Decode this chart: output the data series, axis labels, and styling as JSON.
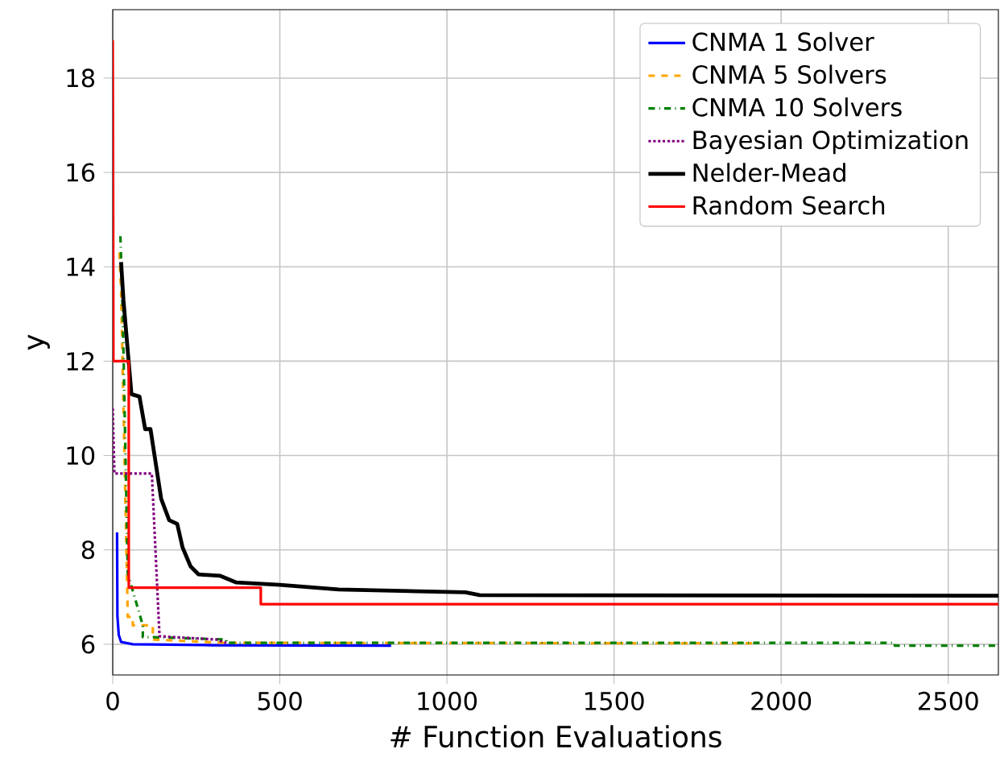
{
  "chart_data": {
    "type": "line",
    "xlabel": "# Function Evaluations",
    "ylabel": "y",
    "xlim": [
      0,
      2650
    ],
    "ylim": [
      5.35,
      19.45
    ],
    "xticks": [
      0,
      500,
      1000,
      1500,
      2000,
      2500
    ],
    "yticks": [
      6,
      8,
      10,
      12,
      14,
      16,
      18
    ],
    "grid": true,
    "legend": "top right",
    "series": [
      {
        "name": "CNMA 1 Solver",
        "color": "#0000ff",
        "line_style": "solid",
        "x": [
          13,
          14,
          18,
          25,
          60,
          300,
          833
        ],
        "values": [
          8.37,
          6.6,
          6.2,
          6.05,
          6.0,
          5.98,
          5.97
        ]
      },
      {
        "name": "CNMA 5 Solvers",
        "color": "#ffa500",
        "line_style": "dashed",
        "x": [
          20,
          25,
          45,
          60,
          60,
          120,
          120,
          340,
          1915
        ],
        "values": [
          14.3,
          13.5,
          6.58,
          6.58,
          6.4,
          6.4,
          6.1,
          6.03,
          6.02
        ]
      },
      {
        "name": "CNMA 10 Solvers",
        "color": "#008000",
        "line_style": "dashdot",
        "x": [
          23,
          30,
          45,
          90,
          90,
          125,
          340,
          340,
          2340,
          2340,
          2650
        ],
        "values": [
          14.65,
          13.0,
          7.5,
          6.4,
          6.15,
          6.15,
          6.1,
          6.03,
          6.03,
          5.97,
          5.97
        ]
      },
      {
        "name": "Bayesian Optimization",
        "color": "#800080",
        "line_style": "dotted",
        "x": [
          0,
          5,
          117,
          140,
          310,
          340
        ],
        "values": [
          11.0,
          9.62,
          9.62,
          6.17,
          6.1,
          6.03
        ]
      },
      {
        "name": "Nelder-Mead",
        "color": "#000000",
        "line_style": "solid",
        "x": [
          25,
          32,
          56,
          80,
          97,
          113,
          145,
          169,
          193,
          209,
          233,
          257,
          322,
          370,
          500,
          676,
          1055,
          1098,
          2650
        ],
        "values": [
          14.1,
          13.3,
          11.3,
          11.25,
          10.56,
          10.56,
          9.08,
          8.63,
          8.55,
          8.05,
          7.65,
          7.48,
          7.45,
          7.31,
          7.26,
          7.16,
          7.1,
          7.04,
          7.03
        ]
      },
      {
        "name": "Random Search",
        "color": "#ff0000",
        "line_style": "solid",
        "x": [
          0,
          1,
          2,
          48,
          48,
          443,
          443,
          2650
        ],
        "values": [
          18.8,
          16.4,
          12.0,
          12.0,
          7.2,
          7.2,
          6.85,
          6.85
        ]
      }
    ]
  }
}
